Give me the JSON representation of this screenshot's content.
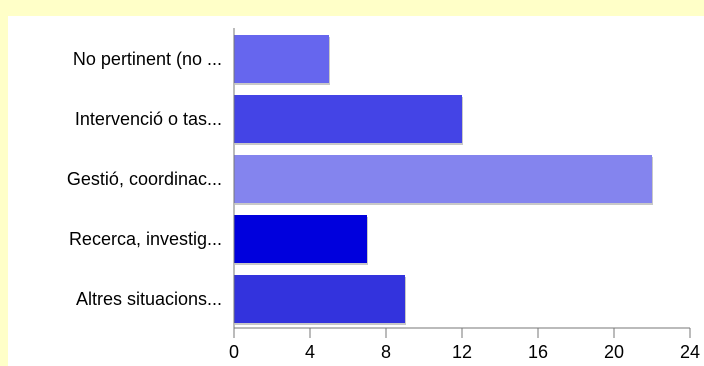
{
  "chart_data": {
    "type": "bar",
    "orientation": "horizontal",
    "categories": [
      "No pertinent (no ...",
      "Intervenció o tas...",
      "Gestió, coordinac...",
      "Recerca, investig...",
      "Altres situacions..."
    ],
    "values": [
      5,
      12,
      22,
      7,
      9
    ],
    "colors": [
      "#6666ee",
      "#4444e6",
      "#8484ee",
      "#0000dd",
      "#3333dd"
    ],
    "xlim": [
      0,
      24
    ],
    "xticks": [
      0,
      4,
      8,
      12,
      16,
      20,
      24
    ],
    "tick_labels": [
      "0",
      "4",
      "8",
      "12",
      "16",
      "20",
      "24"
    ],
    "grid": false,
    "legend": "none"
  }
}
